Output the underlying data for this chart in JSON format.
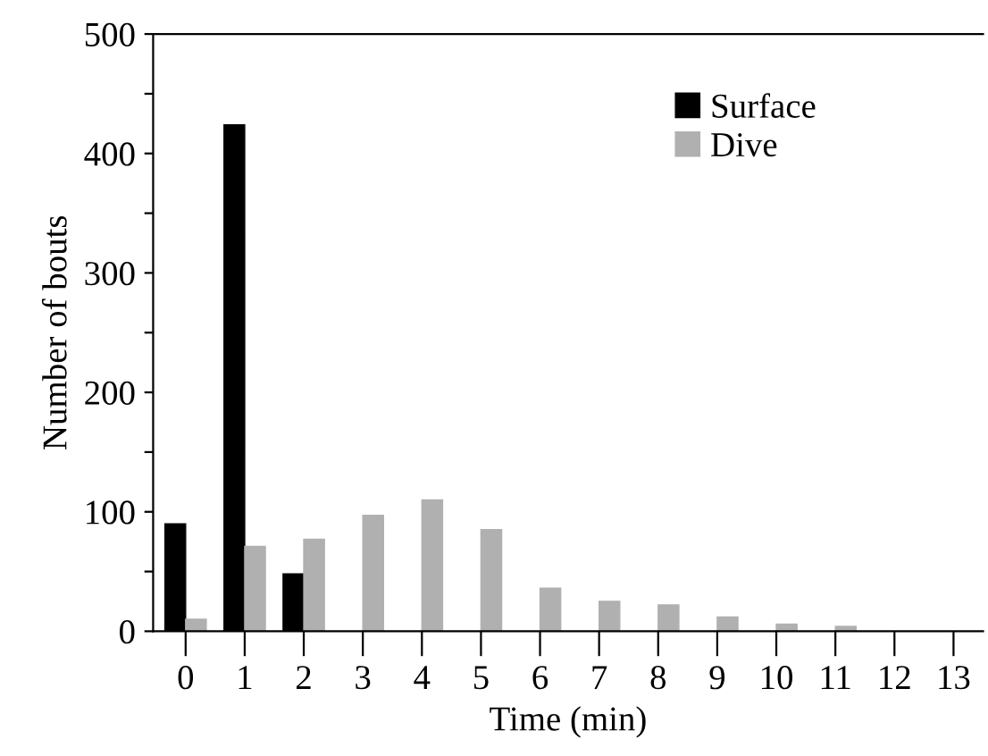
{
  "chart_data": {
    "type": "bar",
    "xlabel": "Time (min)",
    "ylabel": "Number of bouts",
    "categories": [
      "0",
      "1",
      "2",
      "3",
      "4",
      "5",
      "6",
      "7",
      "8",
      "9",
      "10",
      "11",
      "12",
      "13"
    ],
    "series": [
      {
        "name": "Surface",
        "color": "#000000",
        "values": [
          90,
          424,
          48,
          null,
          null,
          null,
          null,
          null,
          null,
          null,
          null,
          null,
          null,
          null
        ]
      },
      {
        "name": "Dive",
        "color": "#b0b0b0",
        "values": [
          10,
          71,
          77,
          97,
          110,
          85,
          36,
          25,
          22,
          12,
          6,
          4,
          null,
          null
        ]
      }
    ],
    "ylim": [
      0,
      500
    ],
    "yticks": [
      0,
      {
        "value": 50,
        "label": null
      },
      100,
      {
        "value": 150,
        "label": null
      },
      200,
      {
        "value": 250,
        "label": null
      },
      300,
      {
        "value": 350,
        "label": null
      },
      400,
      {
        "value": 450,
        "label": null
      },
      500
    ],
    "legend": "top right",
    "grid": false
  }
}
